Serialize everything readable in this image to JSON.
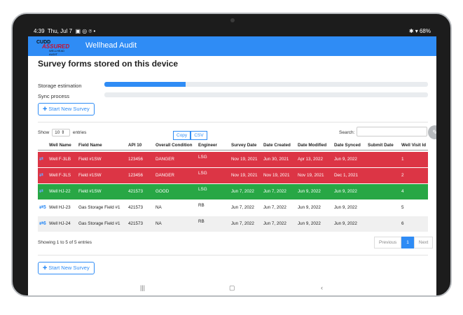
{
  "status": {
    "time": "4:39",
    "date": "Thu, Jul 7",
    "battery": "68%"
  },
  "app": {
    "title": "Wellhead Audit",
    "logo_line1": "CUDD",
    "logo_line2": "ASSURED",
    "logo_line3": "WELLHEAD AUDIT"
  },
  "page": {
    "heading": "Survey forms stored on this device",
    "storage_label": "Storage estimation",
    "storage_fraction": 0.25,
    "sync_label": "Sync process",
    "sync_fraction": 0.0,
    "start_button": "Start New Survey",
    "start_button_bottom": "Start New Survey"
  },
  "table_controls": {
    "show_label": "Show",
    "show_value": "10",
    "entries_label": "entries",
    "copy_label": "Copy",
    "csv_label": "CSV",
    "search_label": "Search:"
  },
  "table": {
    "headers": [
      "Well Name",
      "Field Name",
      "API 10",
      "Overall Condition",
      "Engineer",
      "Survey Date",
      "Date Created",
      "Date Modified",
      "Date Synced",
      "Submit Date",
      "Well Visit Id"
    ],
    "rows": [
      {
        "status": "danger",
        "icon": "",
        "cells": [
          "Well  F-3LB",
          "Field #1SW",
          "123456",
          "DANGER",
          "LSG",
          "Nov 19, 2021",
          "Jun 30, 2021",
          "Apr 13, 2022",
          "Jun 9, 2022",
          "",
          "1"
        ]
      },
      {
        "status": "danger",
        "icon": "",
        "cells": [
          "Well  F-3LS",
          "Field #1SW",
          "123456",
          "DANGER",
          "LSG",
          "Nov 19, 2021",
          "Nov 19, 2021",
          "Nov 19, 2021",
          "Dec 1, 2021",
          "",
          "2"
        ]
      },
      {
        "status": "good",
        "icon": "",
        "cells": [
          "Well  HJ-22",
          "Field #1SW",
          "421573",
          "GOOD",
          "LSG",
          "Jun 7, 2022",
          "Jun 7, 2022",
          "Jun 9, 2022",
          "Jun 9, 2022",
          "",
          "4"
        ]
      },
      {
        "status": "na",
        "icon": "5",
        "cells": [
          "Well  HJ-23",
          "Gas Storage Field #1",
          "421573",
          "NA",
          "RB",
          "Jun 7, 2022",
          "Jun 7, 2022",
          "Jun 9, 2022",
          "Jun 9, 2022",
          "",
          "5"
        ]
      },
      {
        "status": "na",
        "icon": "6",
        "cells": [
          "Well  HJ-24",
          "Gas Storage Field #1",
          "421573",
          "NA",
          "RB",
          "Jun 7, 2022",
          "Jun 7, 2022",
          "Jun 9, 2022",
          "Jun 9, 2022",
          "",
          "6"
        ]
      }
    ]
  },
  "footer": {
    "showing": "Showing 1 to 5 of 5 entries",
    "previous": "Previous",
    "page": "1",
    "next": "Next"
  },
  "colors": {
    "accent": "#2f8cf5",
    "danger": "#dc3545",
    "good": "#28a745",
    "stripe": "#f0f0f0"
  }
}
